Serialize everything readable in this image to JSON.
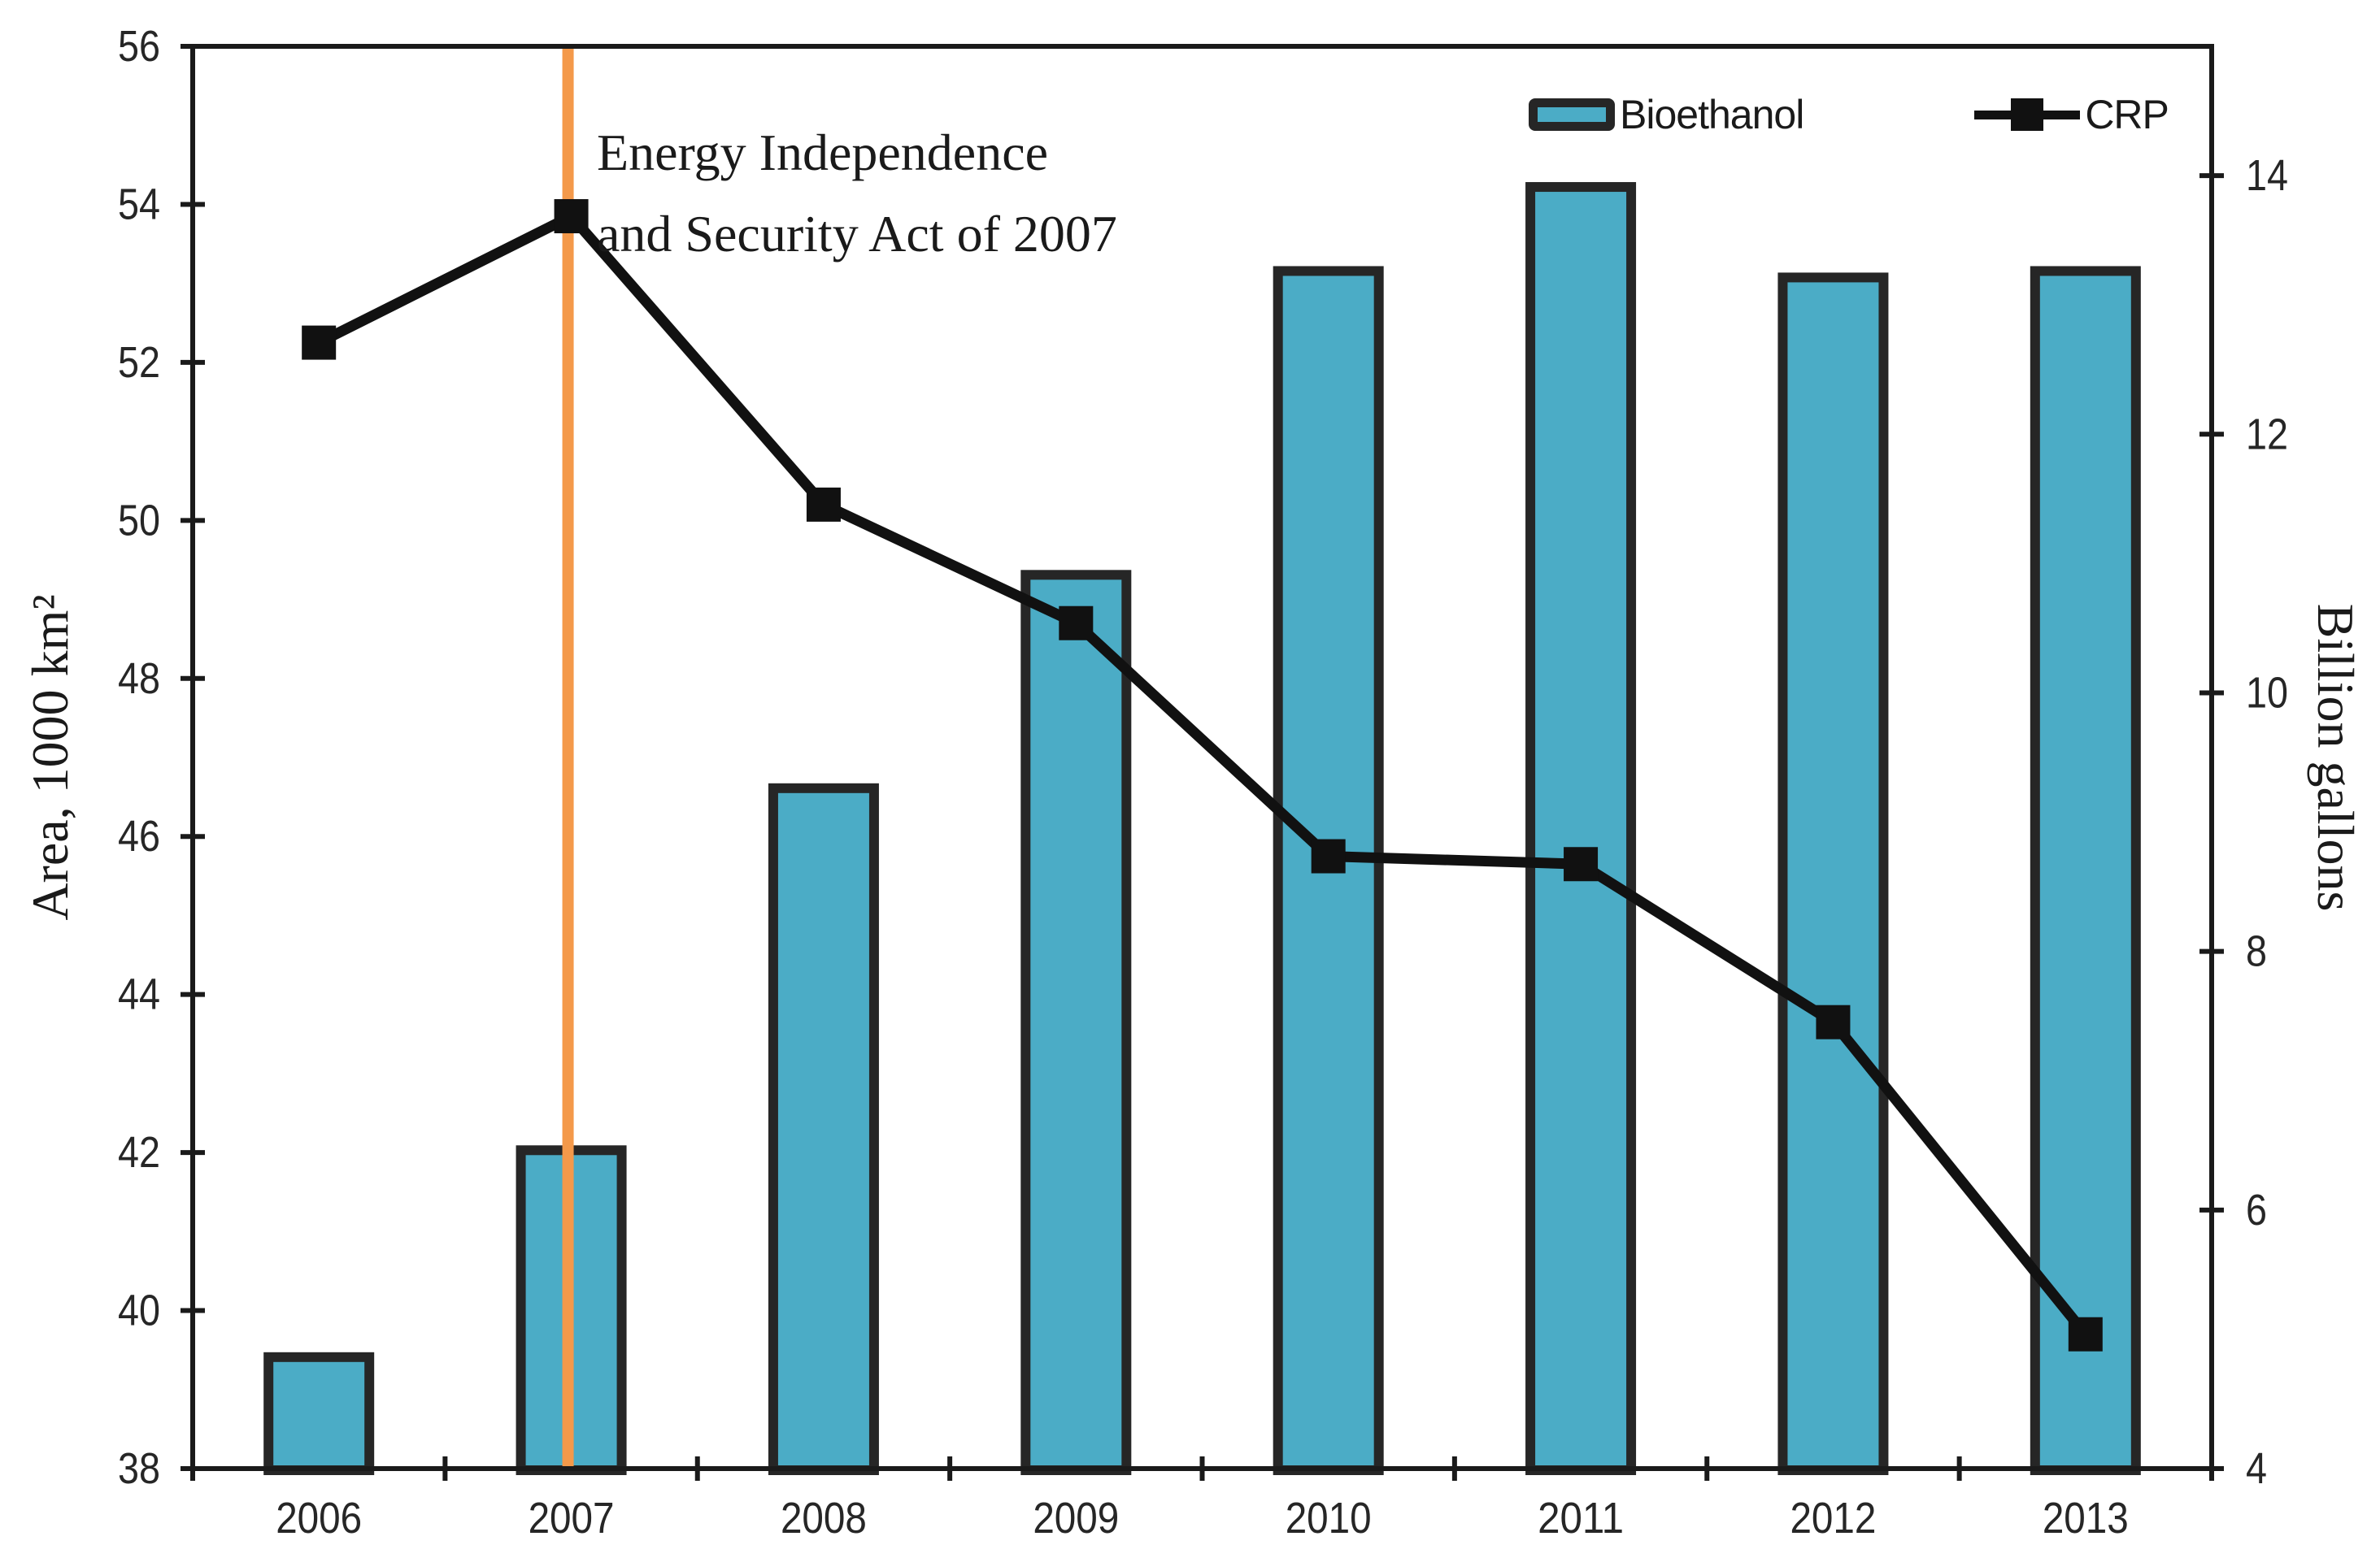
{
  "chart_data": {
    "type": "combo_bar_line_dual_axis",
    "title": "",
    "categories": [
      "2006",
      "2007",
      "2008",
      "2009",
      "2010",
      "2011",
      "2012",
      "2013"
    ],
    "series": [
      {
        "name": "Bioethanol",
        "type": "bar",
        "axis": "right",
        "unit": "Billion gallons",
        "values": [
          4.9,
          6.5,
          9.3,
          10.95,
          13.3,
          13.95,
          13.25,
          13.3
        ],
        "fill_color": "#4BACC6",
        "border_color": "#262626"
      },
      {
        "name": "CRP",
        "type": "line",
        "axis": "left",
        "unit": "1000 km2",
        "values": [
          52.25,
          53.85,
          50.2,
          48.7,
          45.75,
          45.65,
          43.65,
          39.7
        ],
        "line_color": "#111111",
        "marker": "square"
      }
    ],
    "left_axis": {
      "label": "Area, 1000 km²",
      "min": 38,
      "max": 56,
      "tick_step": 2,
      "ticks": [
        56,
        54,
        52,
        50,
        48,
        46,
        44,
        42,
        40,
        38
      ]
    },
    "right_axis": {
      "label": "Billion gallons",
      "min": 4,
      "max": 15,
      "tick_step": 2,
      "ticks": [
        14,
        12,
        10,
        8,
        6,
        4
      ]
    },
    "annotation": {
      "lines": [
        "Energy Independence",
        "and Security Act of 2007"
      ],
      "at_category": "2007",
      "line_color": "#F4994A"
    },
    "legend": {
      "position": "top-right-inside",
      "items": [
        {
          "label": "Bioethanol",
          "swatch": "bar"
        },
        {
          "label": "CRP",
          "swatch": "line-square"
        }
      ]
    },
    "grid": false,
    "plot_border": true,
    "background": "#FFFFFF",
    "axis_color": "#1a1a1a"
  }
}
